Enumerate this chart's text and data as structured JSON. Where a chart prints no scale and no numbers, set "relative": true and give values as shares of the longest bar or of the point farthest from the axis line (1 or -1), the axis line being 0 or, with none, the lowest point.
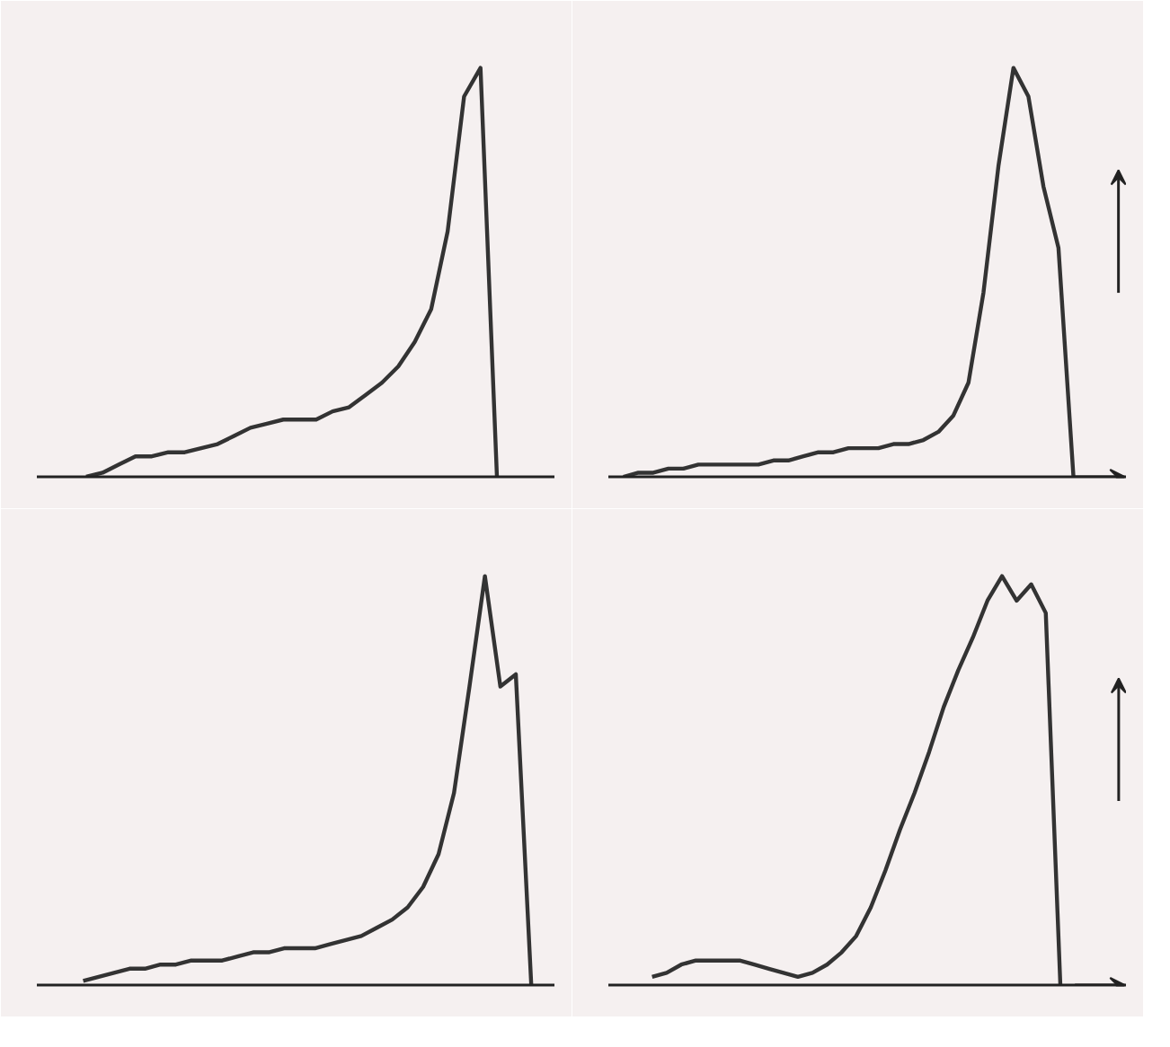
{
  "chart_data": [
    {
      "type": "line",
      "relative": true,
      "categories": [
        null,
        null,
        null,
        null,
        null,
        null,
        null,
        null,
        null,
        null,
        null,
        null,
        null,
        null,
        null,
        null,
        null,
        null,
        null,
        null,
        null,
        null,
        null,
        null,
        null,
        null,
        null,
        null,
        null,
        null
      ],
      "series": [
        {
          "color": "#333333",
          "values": [
            null,
            null,
            0,
            0.01,
            0.03,
            0.05,
            0.05,
            0.06,
            0.06,
            0.07,
            0.08,
            0.1,
            0.12,
            0.13,
            0.14,
            0.14,
            0.14,
            0.16,
            0.17,
            0.2,
            0.23,
            0.27,
            0.33,
            0.41,
            0.6,
            0.93,
            1,
            0,
            null,
            null
          ]
        }
      ]
    },
    {
      "type": "line",
      "relative": true,
      "categories": [
        null,
        null,
        null,
        null,
        null,
        null,
        null,
        null,
        null,
        null,
        null,
        null,
        null,
        null,
        null,
        null,
        null,
        null,
        null,
        null,
        null,
        null,
        null,
        null,
        null,
        null,
        null,
        null,
        null,
        null,
        null
      ],
      "series": [
        {
          "color": "#333333",
          "values": [
            0,
            0.01,
            0.01,
            0.02,
            0.02,
            0.03,
            0.03,
            0.03,
            0.03,
            0.03,
            0.04,
            0.04,
            0.05,
            0.06,
            0.06,
            0.07,
            0.07,
            0.07,
            0.08,
            0.08,
            0.09,
            0.11,
            0.15,
            0.23,
            0.45,
            0.76,
            1,
            0.93,
            0.71,
            0.56,
            0
          ]
        }
      ]
    },
    {
      "type": "line",
      "relative": true,
      "categories": [
        null,
        null,
        null,
        null,
        null,
        null,
        null,
        null,
        null,
        null,
        null,
        null,
        null,
        null,
        null,
        null,
        null,
        null,
        null,
        null,
        null,
        null,
        null,
        null,
        null,
        null,
        null,
        null,
        null,
        null,
        null,
        null
      ],
      "series": [
        {
          "color": "#333333",
          "values": [
            null,
            null,
            0.01,
            0.02,
            0.03,
            0.04,
            0.04,
            0.05,
            0.05,
            0.06,
            0.06,
            0.06,
            0.07,
            0.08,
            0.08,
            0.09,
            0.09,
            0.09,
            0.1,
            0.11,
            0.12,
            0.14,
            0.16,
            0.19,
            0.24,
            0.32,
            0.47,
            0.73,
            1,
            0.73,
            0.76,
            0
          ]
        }
      ]
    },
    {
      "type": "line",
      "relative": true,
      "categories": [
        null,
        null,
        null,
        null,
        null,
        null,
        null,
        null,
        null,
        null,
        null,
        null,
        null,
        null,
        null,
        null,
        null,
        null,
        null,
        null,
        null,
        null,
        null,
        null,
        null,
        null,
        null,
        null,
        null,
        null,
        null,
        null
      ],
      "series": [
        {
          "color": "#333333",
          "values": [
            null,
            null,
            0.02,
            0.03,
            0.05,
            0.06,
            0.06,
            0.06,
            0.06,
            0.05,
            0.04,
            0.03,
            0.02,
            0.03,
            0.05,
            0.08,
            0.12,
            0.19,
            0.28,
            0.38,
            0.47,
            0.57,
            0.68,
            0.77,
            0.85,
            0.94,
            1,
            0.94,
            0.98,
            0.91,
            0,
            null
          ]
        }
      ]
    }
  ]
}
